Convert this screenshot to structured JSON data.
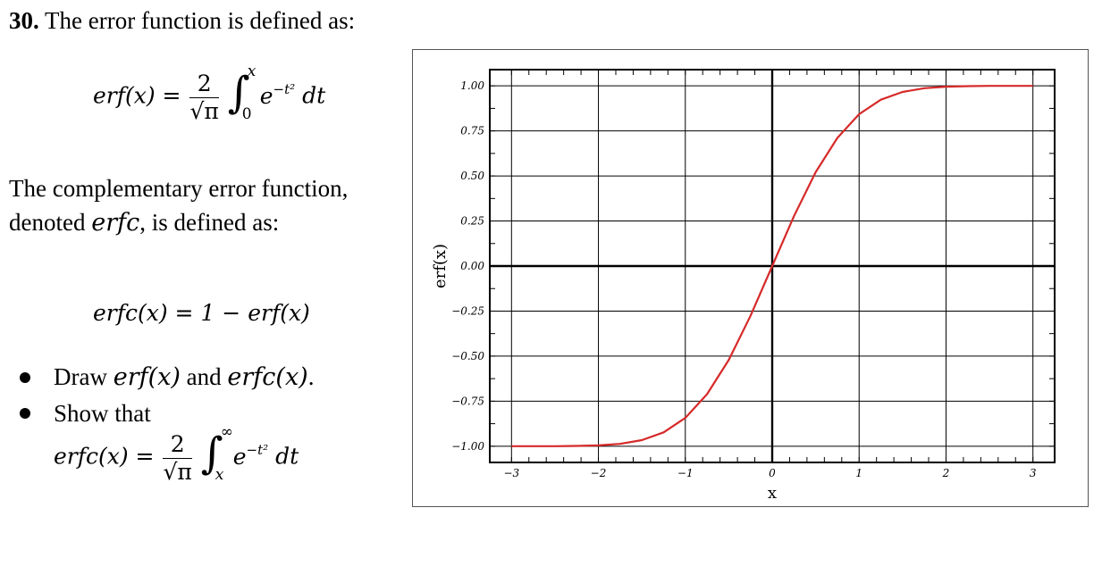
{
  "problem": {
    "number": "30.",
    "intro": "The error function is defined as:",
    "erf_definition": {
      "lhs": "erf(x) =",
      "frac_num": "2",
      "frac_den": "√π",
      "integral_upper": "x",
      "integral_lower": "0",
      "integrand_base": "e",
      "integrand_exp": "−t²",
      "differential": "dt"
    },
    "paragraph_prefix": "The complementary error function, denoted ",
    "paragraph_symbol": "erfc",
    "paragraph_suffix": ", is defined as:",
    "erfc_definition": "erfc(x) = 1 − erf(x)",
    "bullets": [
      {
        "prefix": "Draw ",
        "m1": "erf(x)",
        "mid": " and ",
        "m2": "erfc(x)",
        "suffix": "."
      },
      {
        "text": "Show that"
      }
    ],
    "erfc_integral": {
      "lhs": "erfc(x) =",
      "frac_num": "2",
      "frac_den": "√π",
      "integral_upper": "∞",
      "integral_lower": "x",
      "integrand_base": "e",
      "integrand_exp": "−t²",
      "differential": "dt"
    }
  },
  "chart_data": {
    "type": "line",
    "xlabel": "x",
    "ylabel": "erf(x)",
    "xlim": [
      -3,
      3
    ],
    "ylim": [
      -1.0,
      1.0
    ],
    "x_ticks": [
      "−3",
      "−2",
      "−1",
      "0",
      "1",
      "2",
      "3"
    ],
    "y_ticks": [
      "1.00",
      "0.75",
      "0.50",
      "0.25",
      "0.00",
      "−0.25",
      "−0.50",
      "−0.75",
      "−1.00"
    ],
    "grid": true,
    "series": [
      {
        "color": "#d62a2a",
        "x": [
          -3,
          -2.75,
          -2.5,
          -2.25,
          -2,
          -1.75,
          -1.5,
          -1.25,
          -1,
          -0.75,
          -0.5,
          -0.25,
          0,
          0.25,
          0.5,
          0.75,
          1,
          1.25,
          1.5,
          1.75,
          2,
          2.25,
          2.5,
          2.75,
          3
        ],
        "y": [
          -1.0,
          -0.9999,
          -0.9996,
          -0.9985,
          -0.9953,
          -0.9867,
          -0.9661,
          -0.9229,
          -0.8427,
          -0.7112,
          -0.5205,
          -0.2763,
          0.0,
          0.2763,
          0.5205,
          0.7112,
          0.8427,
          0.9229,
          0.9661,
          0.9867,
          0.9953,
          0.9985,
          0.9996,
          0.9999,
          1.0
        ]
      }
    ]
  }
}
